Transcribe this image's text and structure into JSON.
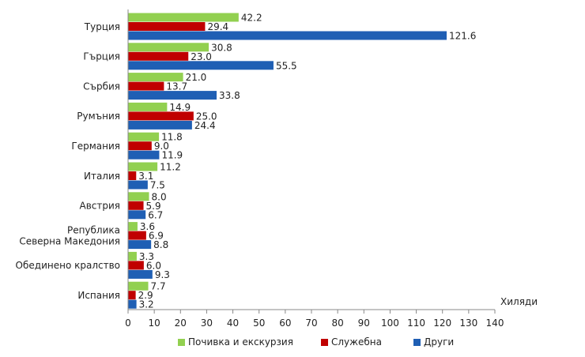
{
  "chart_data": {
    "type": "bar",
    "orientation": "horizontal",
    "categories": [
      "Турция",
      "Гърция",
      "Сърбия",
      "Румъния",
      "Германия",
      "Италия",
      "Австрия",
      "Република Северна Македония",
      "Обединено кралство",
      "Испания"
    ],
    "category_lines": [
      [
        "Турция"
      ],
      [
        "Гърция"
      ],
      [
        "Сърбия"
      ],
      [
        "Румъния"
      ],
      [
        "Германия"
      ],
      [
        "Италия"
      ],
      [
        "Австрия"
      ],
      [
        "Република",
        "Северна Македония"
      ],
      [
        "Обединено кралство"
      ],
      [
        "Испания"
      ]
    ],
    "series": [
      {
        "name": "Почивка и екскурзия",
        "color": "#92d050",
        "values": [
          42.2,
          30.8,
          21.0,
          14.9,
          11.8,
          11.2,
          8.0,
          3.6,
          3.3,
          7.7
        ]
      },
      {
        "name": "Служебна",
        "color": "#c00000",
        "values": [
          29.4,
          23.0,
          13.7,
          25.0,
          9.0,
          3.1,
          5.9,
          6.9,
          6.0,
          2.9
        ]
      },
      {
        "name": "Други",
        "color": "#1f5fb4",
        "values": [
          121.6,
          55.5,
          33.8,
          24.4,
          11.9,
          7.5,
          6.7,
          8.8,
          9.3,
          3.2
        ]
      }
    ],
    "xlim": [
      0,
      140
    ],
    "xticks": [
      0,
      10,
      20,
      30,
      40,
      50,
      60,
      70,
      80,
      90,
      100,
      110,
      120,
      130,
      140
    ],
    "unit_label": "Хиляди",
    "legend_position": "bottom",
    "grid": false
  }
}
